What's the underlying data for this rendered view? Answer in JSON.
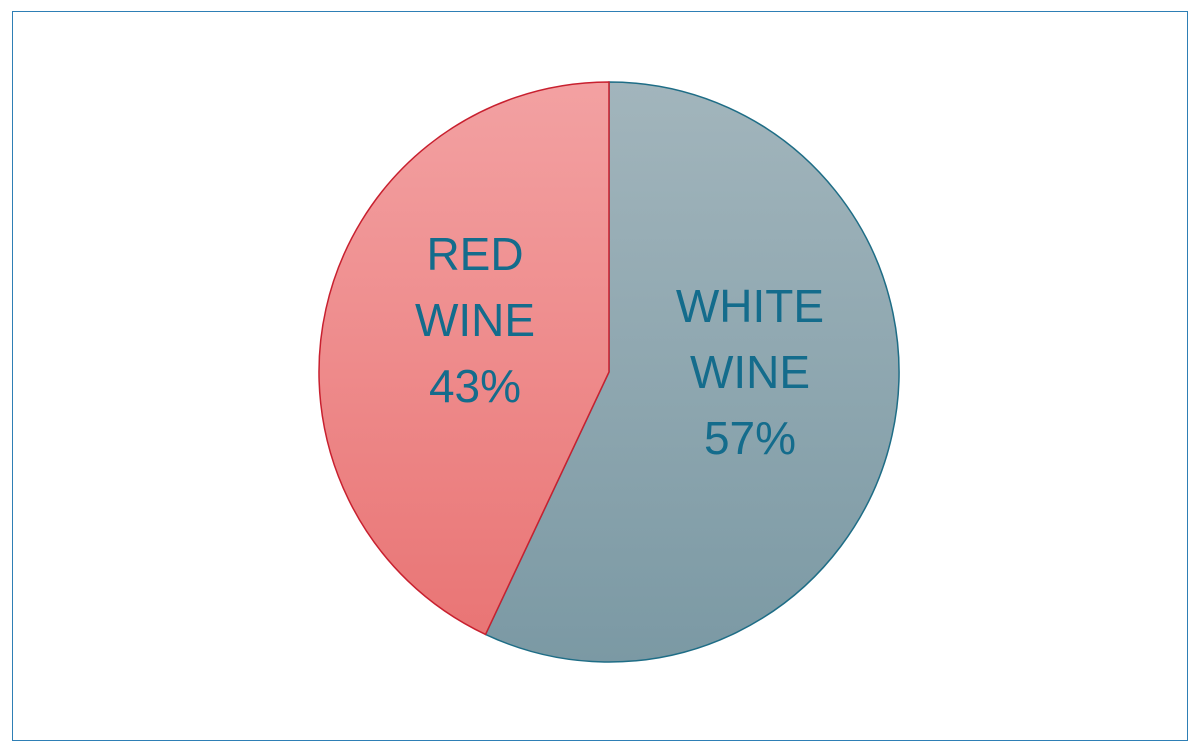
{
  "chart_data": {
    "type": "pie",
    "title": "",
    "slices": [
      {
        "label": "WHITE WINE",
        "value": 57,
        "label_lines": [
          "WHITE",
          "WINE",
          "57%"
        ],
        "color": "#8ea4ad"
      },
      {
        "label": "RED WINE",
        "value": 43,
        "label_lines": [
          "RED",
          "WINE",
          "43%"
        ],
        "color": "#ee8a8a"
      }
    ],
    "start_angle": "12 o'clock, clockwise",
    "legend": "none",
    "label_color": "#146c8c",
    "frame_color": "#2e7fb5"
  }
}
